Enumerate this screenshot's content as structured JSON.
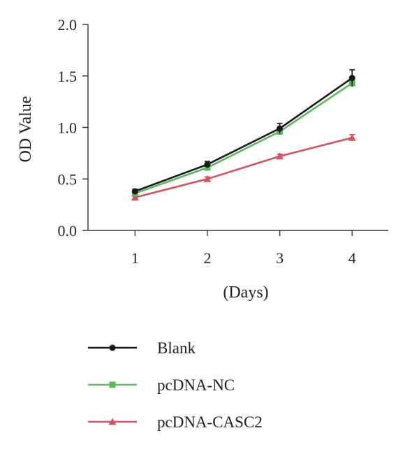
{
  "chart_data": {
    "type": "line",
    "title": "",
    "xlabel": "(Days)",
    "ylabel": "OD Value",
    "x": [
      1,
      2,
      3,
      4
    ],
    "xlim": [
      0.35,
      4.5
    ],
    "ylim": [
      0.0,
      2.0
    ],
    "yticks": [
      "0.0",
      "0.5",
      "1.0",
      "1.5",
      "2.0"
    ],
    "xticks": [
      "1",
      "2",
      "3",
      "4"
    ],
    "grid": false,
    "legend_position": "bottom",
    "series": [
      {
        "name": "Blank",
        "marker": "circle",
        "color": "#1a1a1a",
        "values": [
          0.38,
          0.64,
          0.99,
          1.48
        ],
        "errors": [
          0.02,
          0.03,
          0.05,
          0.08
        ]
      },
      {
        "name": "pcDNA-NC",
        "marker": "square",
        "color": "#5cb85c",
        "values": [
          0.36,
          0.61,
          0.96,
          1.43
        ],
        "errors": [
          0.02,
          0.03,
          0.03,
          0.04
        ]
      },
      {
        "name": "pcDNA-CASC2",
        "marker": "triangle",
        "color": "#d1545e",
        "values": [
          0.32,
          0.5,
          0.72,
          0.9
        ],
        "errors": [
          0.01,
          0.02,
          0.02,
          0.03
        ]
      }
    ]
  }
}
